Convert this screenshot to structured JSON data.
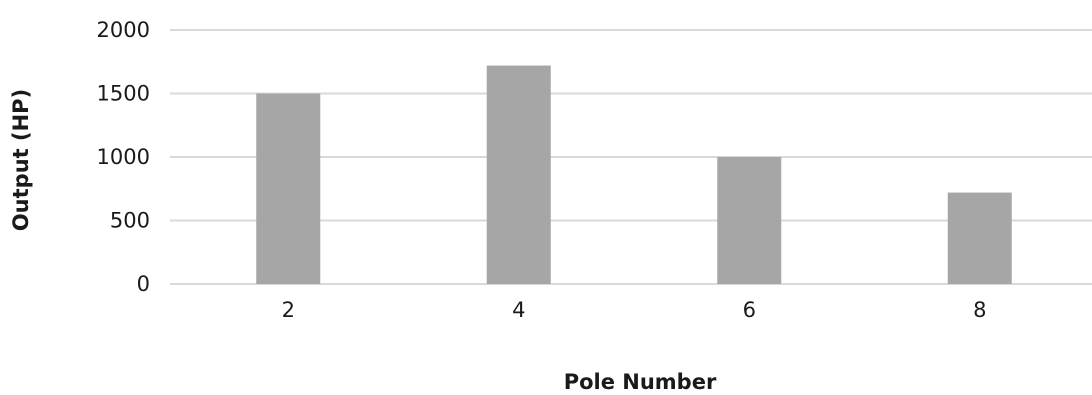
{
  "chart_data": {
    "type": "bar",
    "title": "",
    "xlabel": "Pole Number",
    "ylabel": "Output (HP)",
    "categories": [
      "2",
      "4",
      "6",
      "8"
    ],
    "series": [
      {
        "values": [
          1500,
          1720,
          1000,
          720
        ]
      }
    ],
    "ylim": [
      0,
      2000
    ],
    "yticks": [
      "0",
      "500",
      "1000",
      "1500",
      "2000"
    ],
    "grid": true,
    "legend": "none",
    "colors": {
      "bar": "#a6a6a6",
      "grid": "#d9d9d9",
      "text": "#1a1a1a"
    }
  }
}
